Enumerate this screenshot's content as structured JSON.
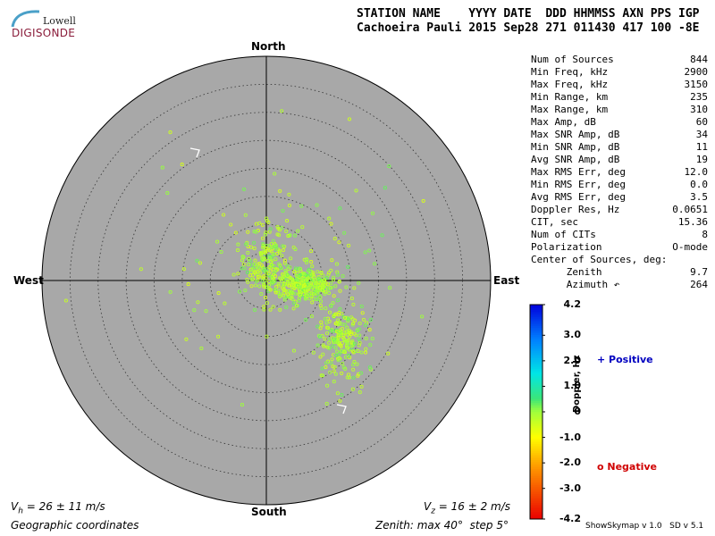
{
  "logo": {
    "line1": "Lowell",
    "line2": "DIGISONDE"
  },
  "header": {
    "labels": "STATION NAME    YYYY DATE  DDD HHMMSS AXN PPS IGP",
    "values": "Cachoeira Pauli 2015 Sep28 271 011430 417 100 -8E"
  },
  "stats": [
    {
      "label": "Num of Sources",
      "value": "844"
    },
    {
      "label": "Min Freq, kHz",
      "value": "2900"
    },
    {
      "label": "Max Freq, kHz",
      "value": "3150"
    },
    {
      "label": "Min Range, km",
      "value": "235"
    },
    {
      "label": "Max Range, km",
      "value": "310"
    },
    {
      "label": "Max Amp, dB",
      "value": "60"
    },
    {
      "label": "Max SNR Amp, dB",
      "value": "34"
    },
    {
      "label": "Min SNR Amp, dB",
      "value": "11"
    },
    {
      "label": "Avg SNR Amp, dB",
      "value": "19"
    },
    {
      "label": "Max RMS Err, deg",
      "value": "12.0"
    },
    {
      "label": "Min RMS Err, deg",
      "value": "0.0"
    },
    {
      "label": "Avg RMS Err, deg",
      "value": "3.5"
    },
    {
      "label": "Doppler Res, Hz",
      "value": "0.0651"
    },
    {
      "label": "CIT, sec",
      "value": "15.36"
    },
    {
      "label": "Num of CITs",
      "value": "8"
    },
    {
      "label": "Polarization",
      "value": "O-mode"
    },
    {
      "label": "Center of Sources, deg:",
      "value": ""
    },
    {
      "label": "      Zenith",
      "value": "9.7"
    },
    {
      "label": "      Azimuth ↶",
      "value": "264"
    }
  ],
  "directions": {
    "north": "North",
    "south": "South",
    "west": "West",
    "east": "East"
  },
  "footer": {
    "vh_sym": "V",
    "vh_sub": "h",
    "vh_rest": " = 26 ± 11 m/s",
    "vz_sym": "V",
    "vz_sub": "z",
    "vz_rest": " = 16 ± 2 m/s",
    "coords": "Geographic coordinates",
    "zenith": "Zenith: max 40°  step 5°",
    "software": "ShowSkymap v 1.0   SD v 5.1"
  },
  "colorbar": {
    "label": "Doppler, Hz",
    "ticks": [
      "4.2",
      "3.0",
      "2.0",
      "1.0",
      "0",
      "-1.0",
      "-2.0",
      "-3.0",
      "-4.2"
    ],
    "tick_values": [
      4.2,
      3.0,
      2.0,
      1.0,
      0,
      -1.0,
      -2.0,
      -3.0,
      -4.2
    ],
    "range": [
      -4.2,
      4.2
    ]
  },
  "legend": {
    "positive": "+ Positive",
    "negative": "o Negative"
  },
  "chart_data": {
    "type": "scatter",
    "projection": "polar-skymap",
    "zenith_max_deg": 40,
    "zenith_step_deg": 5,
    "num_sources": 844,
    "center_zenith_deg": 9.7,
    "center_azimuth_deg": 264,
    "clusters": [
      {
        "x": 0.3,
        "y": 3.0,
        "sx": 2.6,
        "sy": 3.4,
        "weight": 0.26
      },
      {
        "x": 6.5,
        "y": -0.8,
        "sx": 2.8,
        "sy": 1.4,
        "weight": 0.38
      },
      {
        "x": 13.5,
        "y": -10.5,
        "sx": 2.4,
        "sy": 3.4,
        "weight": 0.26
      },
      {
        "x": 2.0,
        "y": 4.0,
        "sx": 12.0,
        "sy": 10.0,
        "weight": 0.1
      }
    ],
    "doppler_hz_range": [
      -0.6,
      0.3
    ]
  }
}
